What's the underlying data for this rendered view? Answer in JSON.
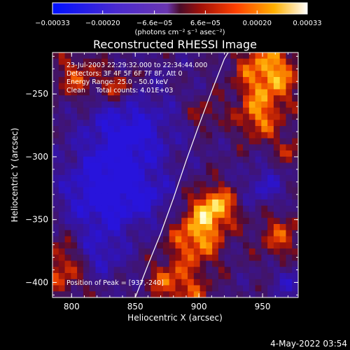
{
  "chart_data": {
    "type": "heatmap",
    "title": "Reconstructed RHESSI Image",
    "xlabel": "Heliocentric X (arcsec)",
    "ylabel": "Heliocentric Y (arcsec)",
    "xlim": [
      785,
      978
    ],
    "ylim": [
      -412,
      -217
    ],
    "x_ticks": [
      {
        "value": 800,
        "label": "800"
      },
      {
        "value": 850,
        "label": "850"
      },
      {
        "value": 900,
        "label": "900"
      },
      {
        "value": 950,
        "label": "950"
      }
    ],
    "y_ticks": [
      {
        "value": -250,
        "label": "−250"
      },
      {
        "value": -300,
        "label": "−300"
      },
      {
        "value": -350,
        "label": "−350"
      },
      {
        "value": -400,
        "label": "−400"
      }
    ],
    "colorbar": {
      "range": [
        -0.00033,
        0.00033
      ],
      "ticks": [
        {
          "value": -0.00033,
          "label": "−0.00033"
        },
        {
          "value": -0.0002,
          "label": "−0.00020"
        },
        {
          "value": -6.6e-05,
          "label": "−6.6e−05"
        },
        {
          "value": 6.6e-05,
          "label": "6.6e−05"
        },
        {
          "value": 0.0002,
          "label": "0.00020"
        },
        {
          "value": 0.00033,
          "label": "0.00033"
        }
      ],
      "unit_label": "(photons cm⁻² s⁻¹ asec⁻²)"
    },
    "annotations": [
      "23-Jul-2003 22:29:32.000 to 22:34:44.000",
      "Detectors: 3F 4F 5F 6F 7F 8F, Att 0",
      "Energy Range: 25.0 - 50.0 keV",
      "Clean     Total counts: 4.01E+03"
    ],
    "peak_label": "Position of Peak = [937,-240]",
    "peak_position": [
      937,
      -240
    ],
    "limb_curve": {
      "x": [
        850,
        860,
        870,
        880,
        890,
        900,
        910,
        920,
        923
      ],
      "y": [
        -412,
        -386,
        -361,
        -333,
        -303,
        -275,
        -248,
        -222,
        -217
      ]
    },
    "grid": false,
    "image_grid": {
      "nx": 40,
      "ny": 40
    }
  },
  "footer": {
    "timestamp": "4-May-2022 03:54"
  }
}
